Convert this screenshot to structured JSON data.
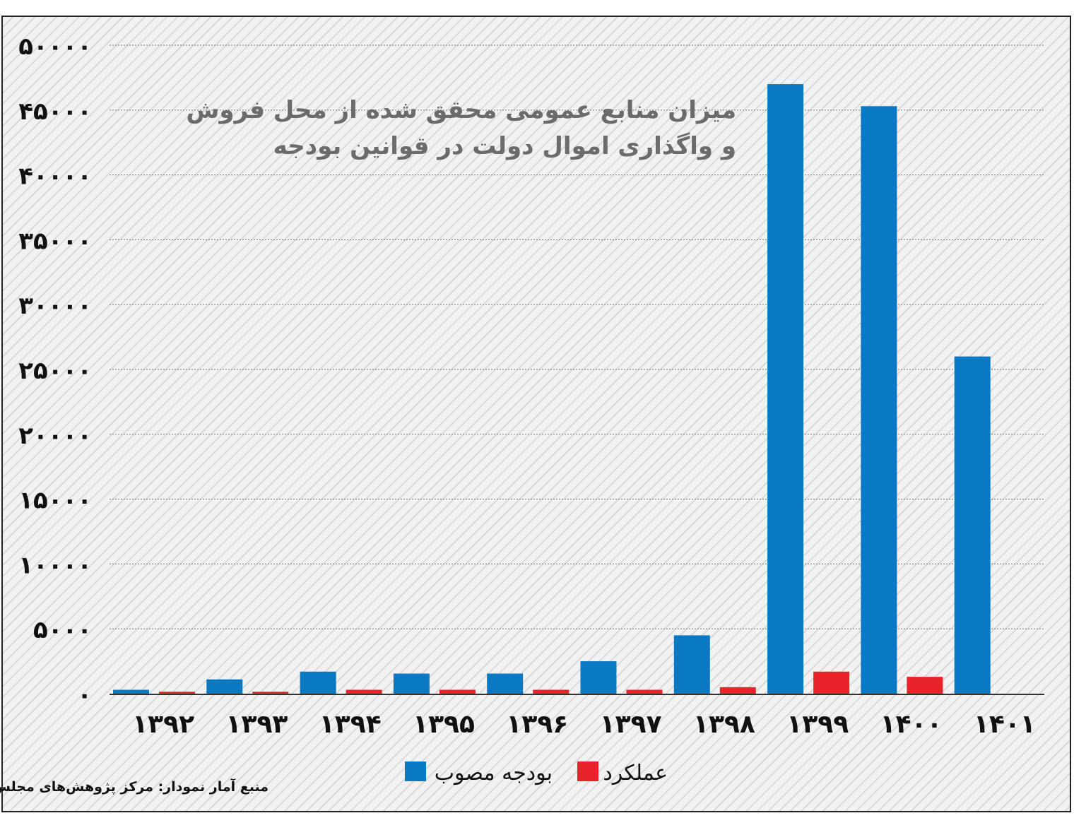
{
  "chart_data": {
    "type": "bar",
    "title_lines": [
      "میزان منابع عمومی محقق شده از محل فروش",
      "و واگذاری اموال دولت در قوانین بودجه"
    ],
    "categories": [
      "۱۳۹۲",
      "۱۳۹۳",
      "۱۳۹۴",
      "۱۳۹۵",
      "۱۳۹۶",
      "۱۳۹۷",
      "۱۳۹۸",
      "۱۳۹۹",
      "۱۴۰۰",
      "۱۴۰۱"
    ],
    "series": [
      {
        "name": "بودجه مصوب",
        "color": "#0a79c4",
        "values": [
          300,
          1100,
          1700,
          1550,
          1550,
          2500,
          4500,
          47000,
          45300,
          26000
        ]
      },
      {
        "name": "عملکرد",
        "color": "#e8232b",
        "values": [
          150,
          150,
          300,
          300,
          300,
          300,
          500,
          1700,
          1300,
          null
        ]
      }
    ],
    "y_ticks": [
      0,
      5000,
      10000,
      15000,
      20000,
      25000,
      30000,
      35000,
      40000,
      45000,
      50000
    ],
    "y_tick_labels": [
      "۰",
      "۵۰۰۰",
      "۱۰۰۰۰",
      "۱۵۰۰۰",
      "۲۰۰۰۰",
      "۲۵۰۰۰",
      "۳۰۰۰۰",
      "۳۵۰۰۰",
      "۴۰۰۰۰",
      "۴۵۰۰۰",
      "۵۰۰۰۰"
    ],
    "ylim": [
      0,
      50000
    ],
    "grid": "horizontal dotted",
    "legend_position": "bottom-center",
    "source": "منبع آمار نمودار: مرکز پژوهش‌های مجلس"
  }
}
